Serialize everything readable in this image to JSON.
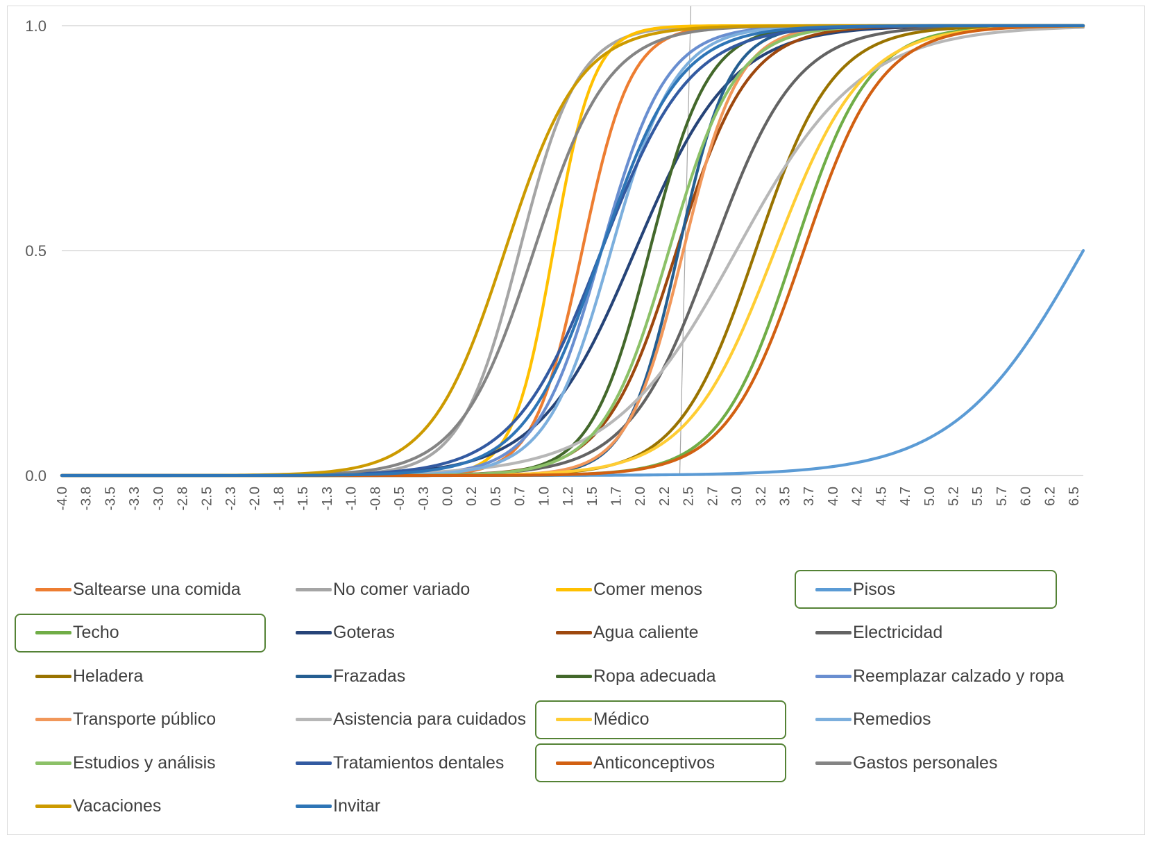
{
  "chart_data": {
    "type": "line",
    "title": "",
    "xlabel": "",
    "ylabel": "",
    "xlim": [
      -4.0,
      6.6
    ],
    "ylim": [
      0,
      1
    ],
    "grid": "horizontal",
    "legend_position": "bottom",
    "y_ticks": [
      "0.0",
      "0.5",
      "1.0"
    ],
    "x_ticks": [
      "-4.0",
      "-3.8",
      "-3.5",
      "-3.3",
      "-3.0",
      "-2.8",
      "-2.5",
      "-2.3",
      "-2.0",
      "-1.8",
      "-1.5",
      "-1.3",
      "-1.0",
      "-0.8",
      "-0.5",
      "-0.3",
      "0.0",
      "0.2",
      "0.5",
      "0.7",
      "1.0",
      "1.2",
      "1.5",
      "1.7",
      "2.0",
      "2.2",
      "2.5",
      "2.7",
      "3.0",
      "3.2",
      "3.5",
      "3.7",
      "4.0",
      "4.2",
      "4.5",
      "4.7",
      "5.0",
      "5.2",
      "5.5",
      "5.7",
      "6.0",
      "6.2",
      "6.5"
    ],
    "x_tick_values": [
      -4.0,
      -3.75,
      -3.5,
      -3.25,
      -3.0,
      -2.75,
      -2.5,
      -2.25,
      -2.0,
      -1.75,
      -1.5,
      -1.25,
      -1.0,
      -0.75,
      -0.5,
      -0.25,
      0.0,
      0.25,
      0.5,
      0.75,
      1.0,
      1.25,
      1.5,
      1.75,
      2.0,
      2.25,
      2.5,
      2.75,
      3.0,
      3.25,
      3.5,
      3.75,
      4.0,
      4.25,
      4.5,
      4.75,
      5.0,
      5.25,
      5.5,
      5.75,
      6.0,
      6.25,
      6.5
    ],
    "reference_line_x": 2.47,
    "x_midpoints": {
      "Saltearse una comida": 1.4,
      "No comer variado": 0.75,
      "Comer menos": 1.1,
      "Pisos": 6.6,
      "Techo": 3.6,
      "Goteras": 1.95,
      "Agua caliente": 2.38,
      "Electricidad": 2.75,
      "Heladera": 3.2,
      "Frazadas": 2.4,
      "Ropa adecuada": 2.1,
      "Reemplazar calzado y ropa": 1.6,
      "Transporte público": 2.45,
      "Asistencia para cuidados": 3.0,
      "Médico": 3.4,
      "Remedios": 1.7,
      "Estudios y análisis": 2.3,
      "Tratamientos dentales": 1.6,
      "Anticonceptivos": 3.7,
      "Gastos personales": 0.9,
      "Vacaciones": 0.6,
      "Invitar": 1.6
    },
    "slopes": {
      "Saltearse una comida": 4.0,
      "No comer variado": 3.3,
      "Comer menos": 4.8,
      "Pisos": 1.5,
      "Techo": 2.6,
      "Goteras": 2.0,
      "Agua caliente": 2.7,
      "Electricidad": 2.3,
      "Heladera": 2.5,
      "Frazadas": 3.8,
      "Ropa adecuada": 3.3,
      "Reemplazar calzado y ropa": 3.0,
      "Transporte público": 3.5,
      "Asistencia para cuidados": 1.55,
      "Médico": 2.2,
      "Remedios": 3.0,
      "Estudios y análisis": 2.9,
      "Tratamientos dentales": 2.2,
      "Anticonceptivos": 2.5,
      "Gastos personales": 2.6,
      "Vacaciones": 2.6,
      "Invitar": 2.5
    },
    "series": [
      {
        "name": "Saltearse una comida",
        "color": "#ED7D31",
        "highlighted": false
      },
      {
        "name": "No comer variado",
        "color": "#A5A5A5",
        "highlighted": false
      },
      {
        "name": "Comer menos",
        "color": "#FFC000",
        "highlighted": false
      },
      {
        "name": "Pisos",
        "color": "#5B9BD5",
        "highlighted": true
      },
      {
        "name": "Techo",
        "color": "#70AD47",
        "highlighted": true
      },
      {
        "name": "Goteras",
        "color": "#264478",
        "highlighted": false
      },
      {
        "name": "Agua caliente",
        "color": "#9E480E",
        "highlighted": false
      },
      {
        "name": "Electricidad",
        "color": "#636363",
        "highlighted": false
      },
      {
        "name": "Heladera",
        "color": "#997300",
        "highlighted": false
      },
      {
        "name": "Frazadas",
        "color": "#255E91",
        "highlighted": false
      },
      {
        "name": "Ropa adecuada",
        "color": "#43682B",
        "highlighted": false
      },
      {
        "name": "Reemplazar calzado y ropa",
        "color": "#698ED0",
        "highlighted": false
      },
      {
        "name": "Transporte público",
        "color": "#F1975A",
        "highlighted": false
      },
      {
        "name": "Asistencia para cuidados",
        "color": "#B7B7B7",
        "highlighted": false
      },
      {
        "name": "Médico",
        "color": "#FFCD33",
        "highlighted": true
      },
      {
        "name": "Remedios",
        "color": "#7CAFDD",
        "highlighted": false
      },
      {
        "name": "Estudios y análisis",
        "color": "#8CC168",
        "highlighted": false
      },
      {
        "name": "Tratamientos dentales",
        "color": "#335AA1",
        "highlighted": false
      },
      {
        "name": "Anticonceptivos",
        "color": "#D26012",
        "highlighted": true
      },
      {
        "name": "Gastos personales",
        "color": "#848484",
        "highlighted": false
      },
      {
        "name": "Vacaciones",
        "color": "#CC9A00",
        "highlighted": false
      },
      {
        "name": "Invitar",
        "color": "#2E75B6",
        "highlighted": false
      }
    ]
  }
}
